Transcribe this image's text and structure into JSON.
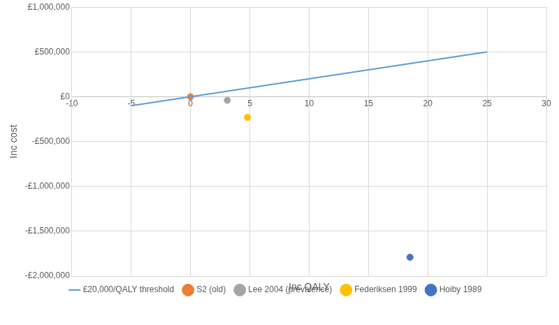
{
  "chart_data": {
    "type": "scatter",
    "x_label": "Inc QALY",
    "y_label": "Inc cost",
    "xlim": [
      -10,
      30
    ],
    "xticks": [
      -10,
      -5,
      0,
      5,
      10,
      15,
      20,
      25,
      30
    ],
    "ylim": [
      -2000000,
      1000000
    ],
    "yticks": [
      {
        "value": -2000000,
        "label": "-£2,000,000"
      },
      {
        "value": -1500000,
        "label": "-£1,500,000"
      },
      {
        "value": -1000000,
        "label": "-£1,000,000"
      },
      {
        "value": -500000,
        "label": "-£500,000"
      },
      {
        "value": 0,
        "label": "£0"
      },
      {
        "value": 500000,
        "label": "£500,000"
      },
      {
        "value": 1000000,
        "label": "£1,000,000"
      }
    ],
    "grid": true,
    "legend": "bottom",
    "series": [
      {
        "name": "£20,000/QALY threshold",
        "type": "line",
        "color": "#5b9bd5",
        "x": [
          -5,
          25
        ],
        "values": [
          -100000,
          500000
        ]
      },
      {
        "name": "S2 (old)",
        "type": "scatter",
        "color": "#ed7d31",
        "marker": "circle",
        "x": [
          0
        ],
        "values": [
          0
        ]
      },
      {
        "name": "Lee 2004 (prevalence)",
        "type": "scatter",
        "color": "#a5a5a5",
        "marker": "circle",
        "x": [
          3.1
        ],
        "values": [
          -40000
        ]
      },
      {
        "name": "Federiksen 1999",
        "type": "scatter",
        "color": "#ffc000",
        "marker": "circle",
        "x": [
          4.8
        ],
        "values": [
          -230000
        ]
      },
      {
        "name": "Hoiby 1989",
        "type": "scatter",
        "color": "#4472c4",
        "marker": "circle",
        "x": [
          18.5
        ],
        "values": [
          -1790000
        ]
      }
    ]
  }
}
